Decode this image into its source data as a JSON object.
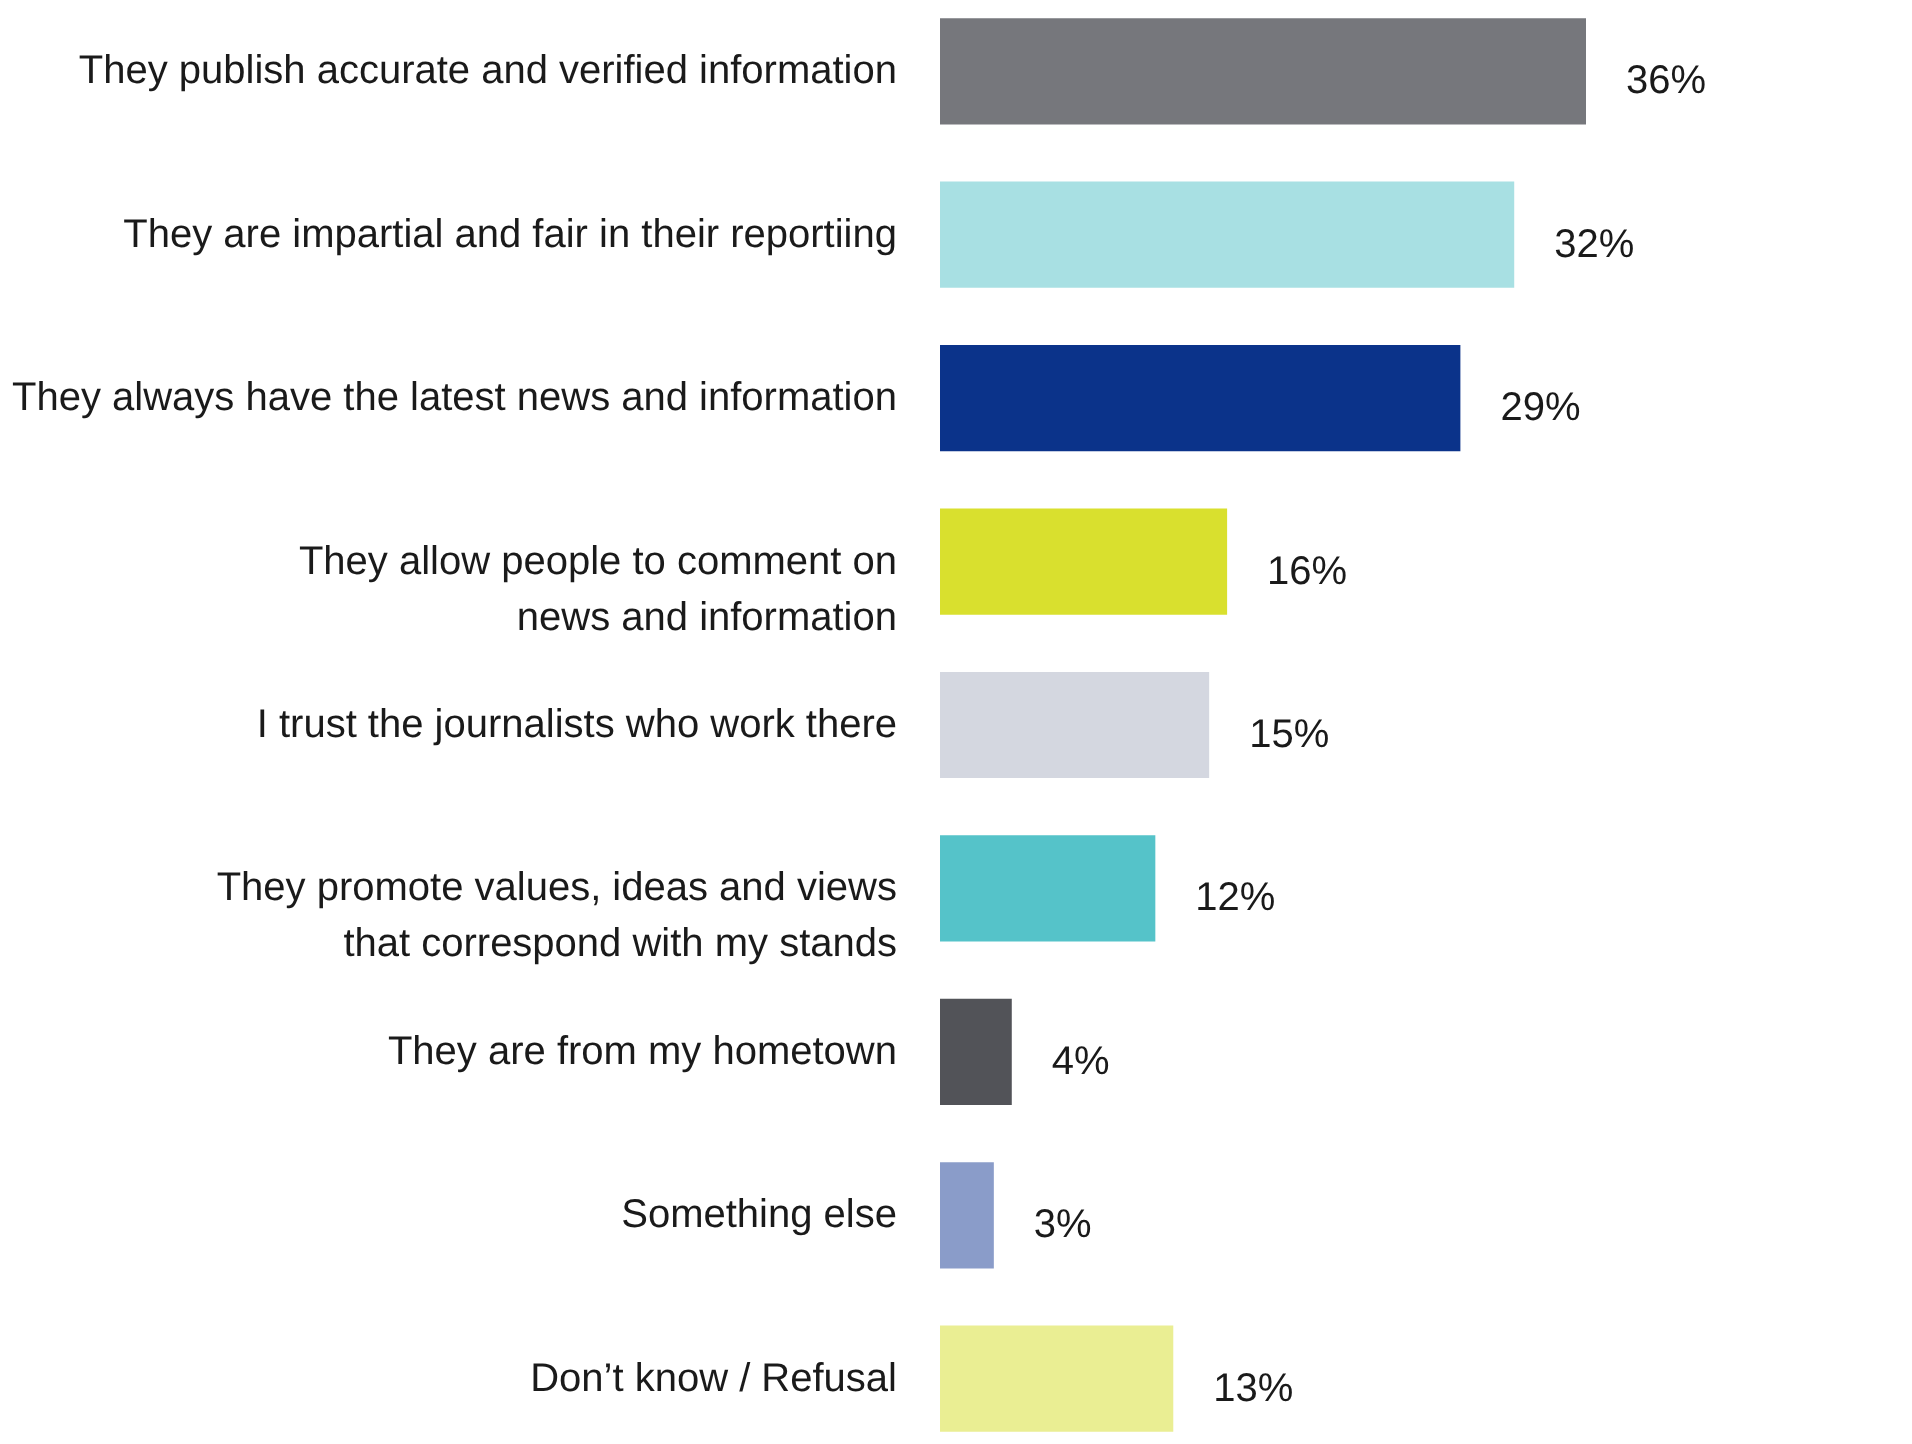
{
  "chart_data": {
    "type": "bar",
    "orientation": "horizontal",
    "categories": [
      "They publish accurate and verified information",
      "They are impartial and fair in their reportiing",
      "They always have the latest news and information",
      "They allow people to comment on\nnews and information",
      "I trust the journalists who work there",
      "They promote values, ideas and views\nthat correspond with my stands",
      "They are from my hometown",
      "Something else",
      "Don’t know / Refusal"
    ],
    "values": [
      36,
      32,
      29,
      16,
      15,
      12,
      4,
      3,
      13
    ],
    "value_labels": [
      "36%",
      "32%",
      "29%",
      "16%",
      "15%",
      "12%",
      "4%",
      "3%",
      "13%"
    ],
    "colors": [
      "#76777c",
      "#a8e0e3",
      "#0b338a",
      "#d9e02e",
      "#d4d7e0",
      "#55c3c9",
      "#525358",
      "#8a9cc9",
      "#eaee93"
    ],
    "grid": false
  }
}
